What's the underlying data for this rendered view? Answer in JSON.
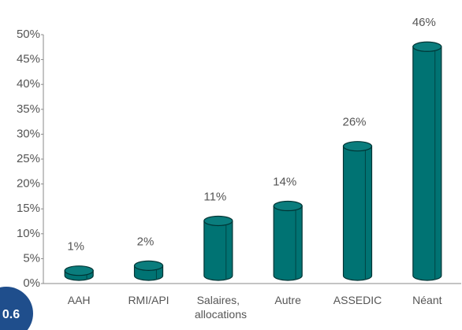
{
  "chart_data": {
    "type": "bar",
    "categories": [
      "AAH",
      "RMI/API",
      "Salaires, allocations",
      "Autre",
      "ASSEDIC",
      "Néant"
    ],
    "values": [
      1,
      2,
      11,
      14,
      26,
      46
    ],
    "value_labels": [
      "1%",
      "2%",
      "11%",
      "14%",
      "26%",
      "46%"
    ],
    "color": "#007373",
    "ylim": [
      0,
      50
    ],
    "yticks": [
      {
        "value": 0,
        "label": "0%"
      },
      {
        "value": 5,
        "label": "5%"
      },
      {
        "value": 10,
        "label": "10%"
      },
      {
        "value": 15,
        "label": "15%"
      },
      {
        "value": 20,
        "label": "20%"
      },
      {
        "value": 25,
        "label": "25%"
      },
      {
        "value": 30,
        "label": "30%"
      },
      {
        "value": 35,
        "label": "35%"
      },
      {
        "value": 40,
        "label": "40%"
      },
      {
        "value": 45,
        "label": "45%"
      },
      {
        "value": 50,
        "label": "50%"
      }
    ],
    "badge": "0.6"
  }
}
